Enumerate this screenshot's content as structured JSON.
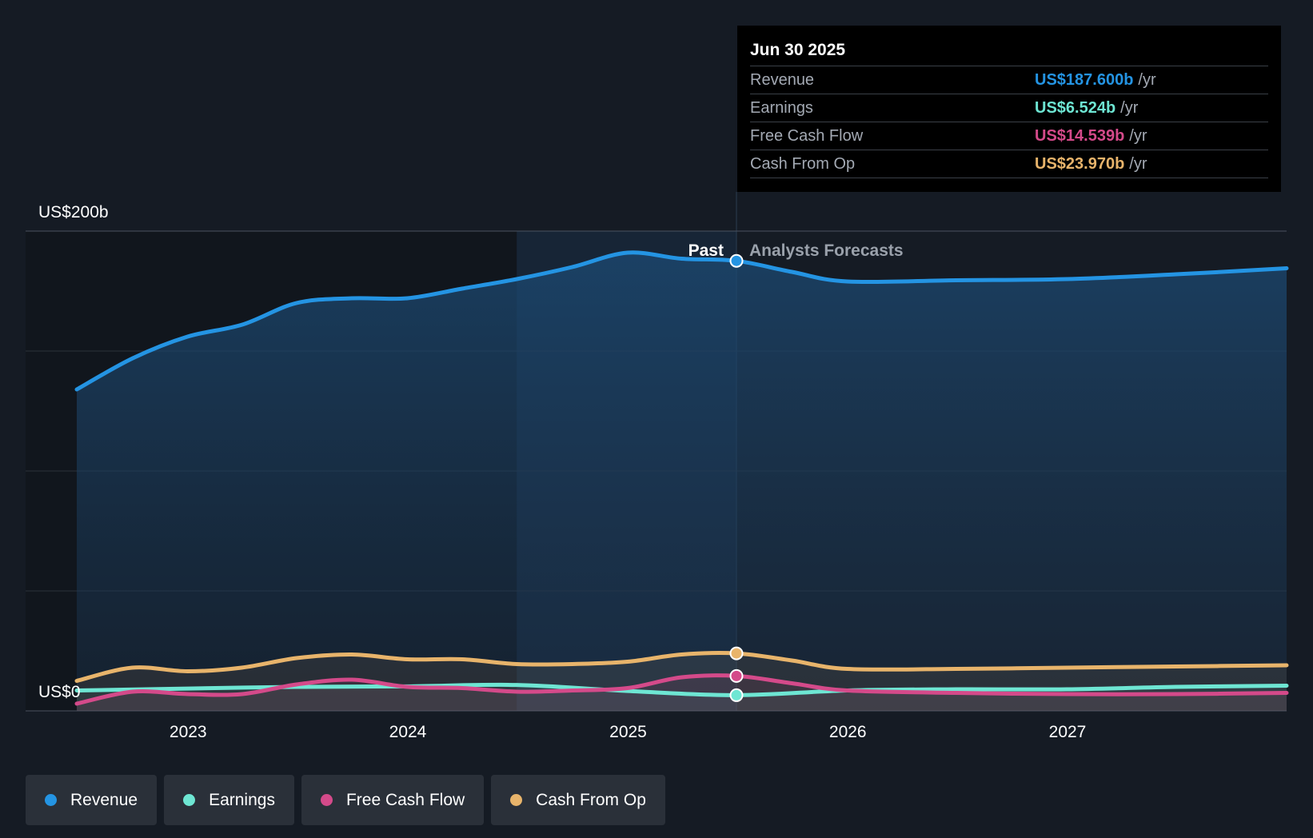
{
  "chart_data": {
    "type": "area",
    "y_axis": {
      "min_label": "US$0",
      "max_label": "US$200b",
      "ylim": [
        0,
        200
      ]
    },
    "x_ticks": [
      "2023",
      "2024",
      "2025",
      "2026",
      "2027"
    ],
    "x_range": [
      "2022-06-30",
      "2027-12-31"
    ],
    "divider_date": "2025-06-30",
    "highlight_start": "2024-06-30",
    "section_labels": {
      "past": "Past",
      "forecast": "Analysts Forecasts"
    },
    "series": [
      {
        "name": "Revenue",
        "color": "#2494e3",
        "points": [
          [
            "2022-06-30",
            134
          ],
          [
            "2022-10-01",
            147
          ],
          [
            "2022-12-31",
            156
          ],
          [
            "2023-04-01",
            161
          ],
          [
            "2023-06-30",
            170
          ],
          [
            "2023-09-30",
            172
          ],
          [
            "2023-12-31",
            172
          ],
          [
            "2024-03-31",
            176
          ],
          [
            "2024-06-30",
            180
          ],
          [
            "2024-09-30",
            185
          ],
          [
            "2024-12-31",
            191
          ],
          [
            "2025-03-31",
            188.5
          ],
          [
            "2025-06-30",
            187.6
          ],
          [
            "2025-09-30",
            183
          ],
          [
            "2025-12-31",
            179
          ],
          [
            "2026-06-30",
            179.5
          ],
          [
            "2026-12-31",
            180
          ],
          [
            "2027-06-30",
            182
          ],
          [
            "2027-12-31",
            184.5
          ]
        ]
      },
      {
        "name": "Earnings",
        "color": "#6ee6d3",
        "points": [
          [
            "2022-06-30",
            8.5
          ],
          [
            "2022-12-31",
            9.3
          ],
          [
            "2023-06-30",
            10
          ],
          [
            "2023-12-31",
            10.2
          ],
          [
            "2024-06-30",
            10.8
          ],
          [
            "2024-12-31",
            8.3
          ],
          [
            "2025-06-30",
            6.524
          ],
          [
            "2025-12-31",
            8.5
          ],
          [
            "2026-06-30",
            9
          ],
          [
            "2026-12-31",
            9
          ],
          [
            "2027-06-30",
            10
          ],
          [
            "2027-12-31",
            10.5
          ]
        ]
      },
      {
        "name": "Free Cash Flow",
        "color": "#d44a8a",
        "points": [
          [
            "2022-06-30",
            3
          ],
          [
            "2022-10-01",
            8
          ],
          [
            "2022-12-31",
            7
          ],
          [
            "2023-04-01",
            7
          ],
          [
            "2023-06-30",
            11
          ],
          [
            "2023-09-30",
            13
          ],
          [
            "2023-12-31",
            10
          ],
          [
            "2024-03-31",
            9.5
          ],
          [
            "2024-06-30",
            8
          ],
          [
            "2024-09-30",
            8.5
          ],
          [
            "2024-12-31",
            9.5
          ],
          [
            "2025-03-31",
            14
          ],
          [
            "2025-06-30",
            14.539
          ],
          [
            "2025-09-30",
            11.5
          ],
          [
            "2025-12-31",
            8.5
          ],
          [
            "2026-06-30",
            7.5
          ],
          [
            "2026-12-31",
            7
          ],
          [
            "2027-06-30",
            7
          ],
          [
            "2027-12-31",
            7.5
          ]
        ]
      },
      {
        "name": "Cash From Op",
        "color": "#e8b46b",
        "points": [
          [
            "2022-06-30",
            12.5
          ],
          [
            "2022-09-30",
            18
          ],
          [
            "2022-12-31",
            16.5
          ],
          [
            "2023-03-31",
            18
          ],
          [
            "2023-06-30",
            22
          ],
          [
            "2023-09-30",
            23.5
          ],
          [
            "2023-12-31",
            21.5
          ],
          [
            "2024-03-31",
            21.5
          ],
          [
            "2024-06-30",
            19.5
          ],
          [
            "2024-09-30",
            19.5
          ],
          [
            "2024-12-31",
            20.5
          ],
          [
            "2025-03-31",
            23.5
          ],
          [
            "2025-06-30",
            23.97
          ],
          [
            "2025-09-30",
            21
          ],
          [
            "2025-12-31",
            17.5
          ],
          [
            "2026-06-30",
            17.5
          ],
          [
            "2026-12-31",
            18
          ],
          [
            "2027-06-30",
            18.5
          ],
          [
            "2027-12-31",
            19
          ]
        ]
      }
    ]
  },
  "tooltip": {
    "date": "Jun 30 2025",
    "unit": "/yr",
    "rows": [
      {
        "label": "Revenue",
        "value": "US$187.600b",
        "color": "#2494e3"
      },
      {
        "label": "Earnings",
        "value": "US$6.524b",
        "color": "#6ee6d3"
      },
      {
        "label": "Free Cash Flow",
        "value": "US$14.539b",
        "color": "#d44a8a"
      },
      {
        "label": "Cash From Op",
        "value": "US$23.970b",
        "color": "#e8b46b"
      }
    ]
  },
  "legend": [
    {
      "label": "Revenue",
      "color": "#2494e3"
    },
    {
      "label": "Earnings",
      "color": "#6ee6d3"
    },
    {
      "label": "Free Cash Flow",
      "color": "#d44a8a"
    },
    {
      "label": "Cash From Op",
      "color": "#e8b46b"
    }
  ]
}
